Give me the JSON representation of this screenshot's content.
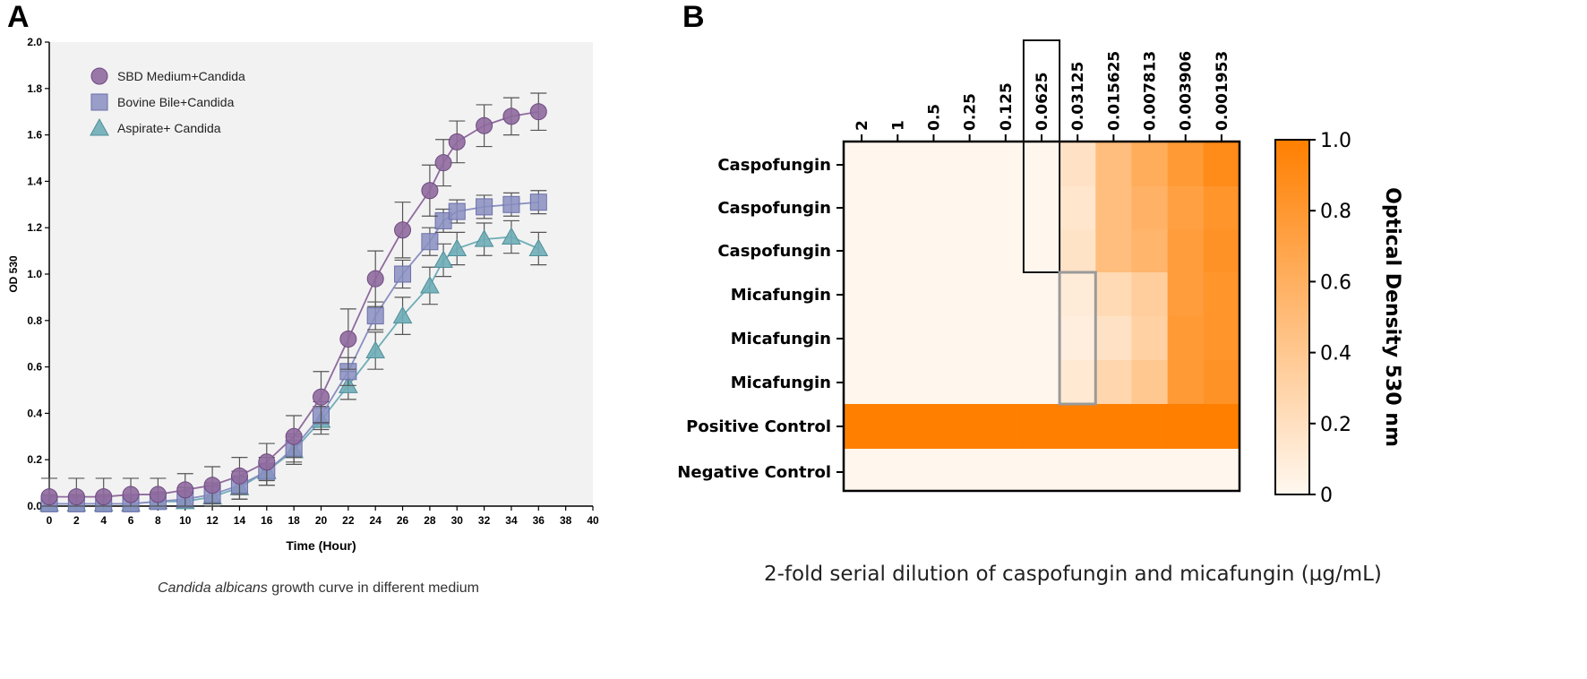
{
  "panels": {
    "a": "A",
    "b": "B"
  },
  "chart_data": [
    {
      "type": "line",
      "panel": "A",
      "xlabel": "Time (Hour)",
      "ylabel": "OD 530",
      "xlim": [
        0,
        40
      ],
      "ylim": [
        0,
        2.0
      ],
      "xticks": [
        "0",
        "2",
        "4",
        "6",
        "8",
        "10",
        "12",
        "14",
        "16",
        "18",
        "20",
        "22",
        "24",
        "26",
        "28",
        "30",
        "32",
        "34",
        "36",
        "38",
        "40"
      ],
      "yticks": [
        "0.0",
        "0.2",
        "0.4",
        "0.6",
        "0.8",
        "1.0",
        "1.2",
        "1.4",
        "1.6",
        "1.8",
        "2.0"
      ],
      "legend_position": "top-left",
      "caption_italic": "Candida albicans",
      "caption_rest": " growth curve in different medium",
      "x": [
        0,
        2,
        4,
        6,
        8,
        10,
        12,
        14,
        16,
        18,
        20,
        22,
        24,
        26,
        28,
        29,
        30,
        32,
        34,
        36
      ],
      "series": [
        {
          "name": "SBD Medium+Candida",
          "marker": "circle",
          "color": "#8f6a9e",
          "values": [
            0.04,
            0.04,
            0.04,
            0.05,
            0.05,
            0.07,
            0.09,
            0.13,
            0.19,
            0.3,
            0.47,
            0.72,
            0.98,
            1.19,
            1.36,
            1.48,
            1.57,
            1.64,
            1.68,
            1.7
          ],
          "errors": [
            0.08,
            0.08,
            0.08,
            0.07,
            0.07,
            0.07,
            0.08,
            0.08,
            0.08,
            0.09,
            0.11,
            0.13,
            0.12,
            0.12,
            0.11,
            0.1,
            0.09,
            0.09,
            0.08,
            0.08
          ]
        },
        {
          "name": "Bovine Bile+Candida",
          "marker": "square",
          "color": "#8a8fc2",
          "values": [
            0.01,
            0.01,
            0.01,
            0.01,
            0.02,
            0.03,
            0.05,
            0.09,
            0.15,
            0.25,
            0.39,
            0.58,
            0.82,
            1.0,
            1.14,
            1.23,
            1.27,
            1.29,
            1.3,
            1.31
          ],
          "errors": [
            0.04,
            0.04,
            0.04,
            0.04,
            0.04,
            0.05,
            0.05,
            0.06,
            0.06,
            0.06,
            0.06,
            0.06,
            0.06,
            0.06,
            0.06,
            0.05,
            0.05,
            0.05,
            0.05,
            0.05
          ]
        },
        {
          "name": "Aspirate+ Candida",
          "marker": "triangle",
          "color": "#6fadb7",
          "values": [
            0.01,
            0.01,
            0.01,
            0.01,
            0.02,
            0.02,
            0.04,
            0.08,
            0.15,
            0.24,
            0.37,
            0.52,
            0.67,
            0.82,
            0.95,
            1.06,
            1.11,
            1.15,
            1.16,
            1.11
          ],
          "errors": [
            0.04,
            0.04,
            0.04,
            0.04,
            0.04,
            0.04,
            0.05,
            0.05,
            0.06,
            0.06,
            0.06,
            0.06,
            0.08,
            0.08,
            0.08,
            0.07,
            0.07,
            0.07,
            0.07,
            0.07
          ]
        }
      ]
    },
    {
      "type": "heatmap",
      "panel": "B",
      "columns": [
        "2",
        "1",
        "0.5",
        "0.25",
        "0.125",
        "0.0625",
        "0.03125",
        "0.015625",
        "0.007813",
        "0.003906",
        "0.001953"
      ],
      "rows": [
        "Caspofungin",
        "Caspofungin",
        "Caspofungin",
        "Micafungin",
        "Micafungin",
        "Micafungin",
        "Positive Control",
        "Negative Control"
      ],
      "values": [
        [
          0.01,
          0.01,
          0.01,
          0.01,
          0.01,
          0.01,
          0.18,
          0.48,
          0.62,
          0.78,
          0.9
        ],
        [
          0.01,
          0.01,
          0.01,
          0.01,
          0.01,
          0.01,
          0.15,
          0.48,
          0.58,
          0.72,
          0.82
        ],
        [
          0.01,
          0.01,
          0.01,
          0.01,
          0.01,
          0.01,
          0.17,
          0.48,
          0.55,
          0.75,
          0.84
        ],
        [
          0.01,
          0.01,
          0.01,
          0.01,
          0.01,
          0.01,
          0.1,
          0.25,
          0.35,
          0.75,
          0.82
        ],
        [
          0.01,
          0.01,
          0.01,
          0.01,
          0.01,
          0.01,
          0.08,
          0.18,
          0.32,
          0.78,
          0.82
        ],
        [
          0.01,
          0.01,
          0.01,
          0.01,
          0.01,
          0.01,
          0.12,
          0.28,
          0.4,
          0.78,
          0.84
        ],
        [
          1.0,
          1.0,
          1.0,
          1.0,
          1.0,
          1.0,
          1.0,
          1.0,
          1.0,
          1.0,
          1.0
        ],
        [
          0.01,
          0.01,
          0.01,
          0.01,
          0.01,
          0.01,
          0.01,
          0.01,
          0.01,
          0.01,
          0.01
        ]
      ],
      "highlight_black": {
        "column": "0.0625",
        "rows": [
          "Caspofungin"
        ]
      },
      "highlight_gray": {
        "column": "0.03125",
        "rows": [
          "Micafungin"
        ]
      },
      "colorbar": {
        "label": "Optical Density 530 nm",
        "ticks": [
          "0",
          "0.2",
          "0.4",
          "0.6",
          "0.8",
          "1.0"
        ],
        "range": [
          0,
          1.0
        ],
        "low_color": "#fff8f0",
        "high_color": "#ff7f00"
      },
      "xlabel": "2-fold serial dilution of caspofungin and micafungin (µg/mL)"
    }
  ]
}
